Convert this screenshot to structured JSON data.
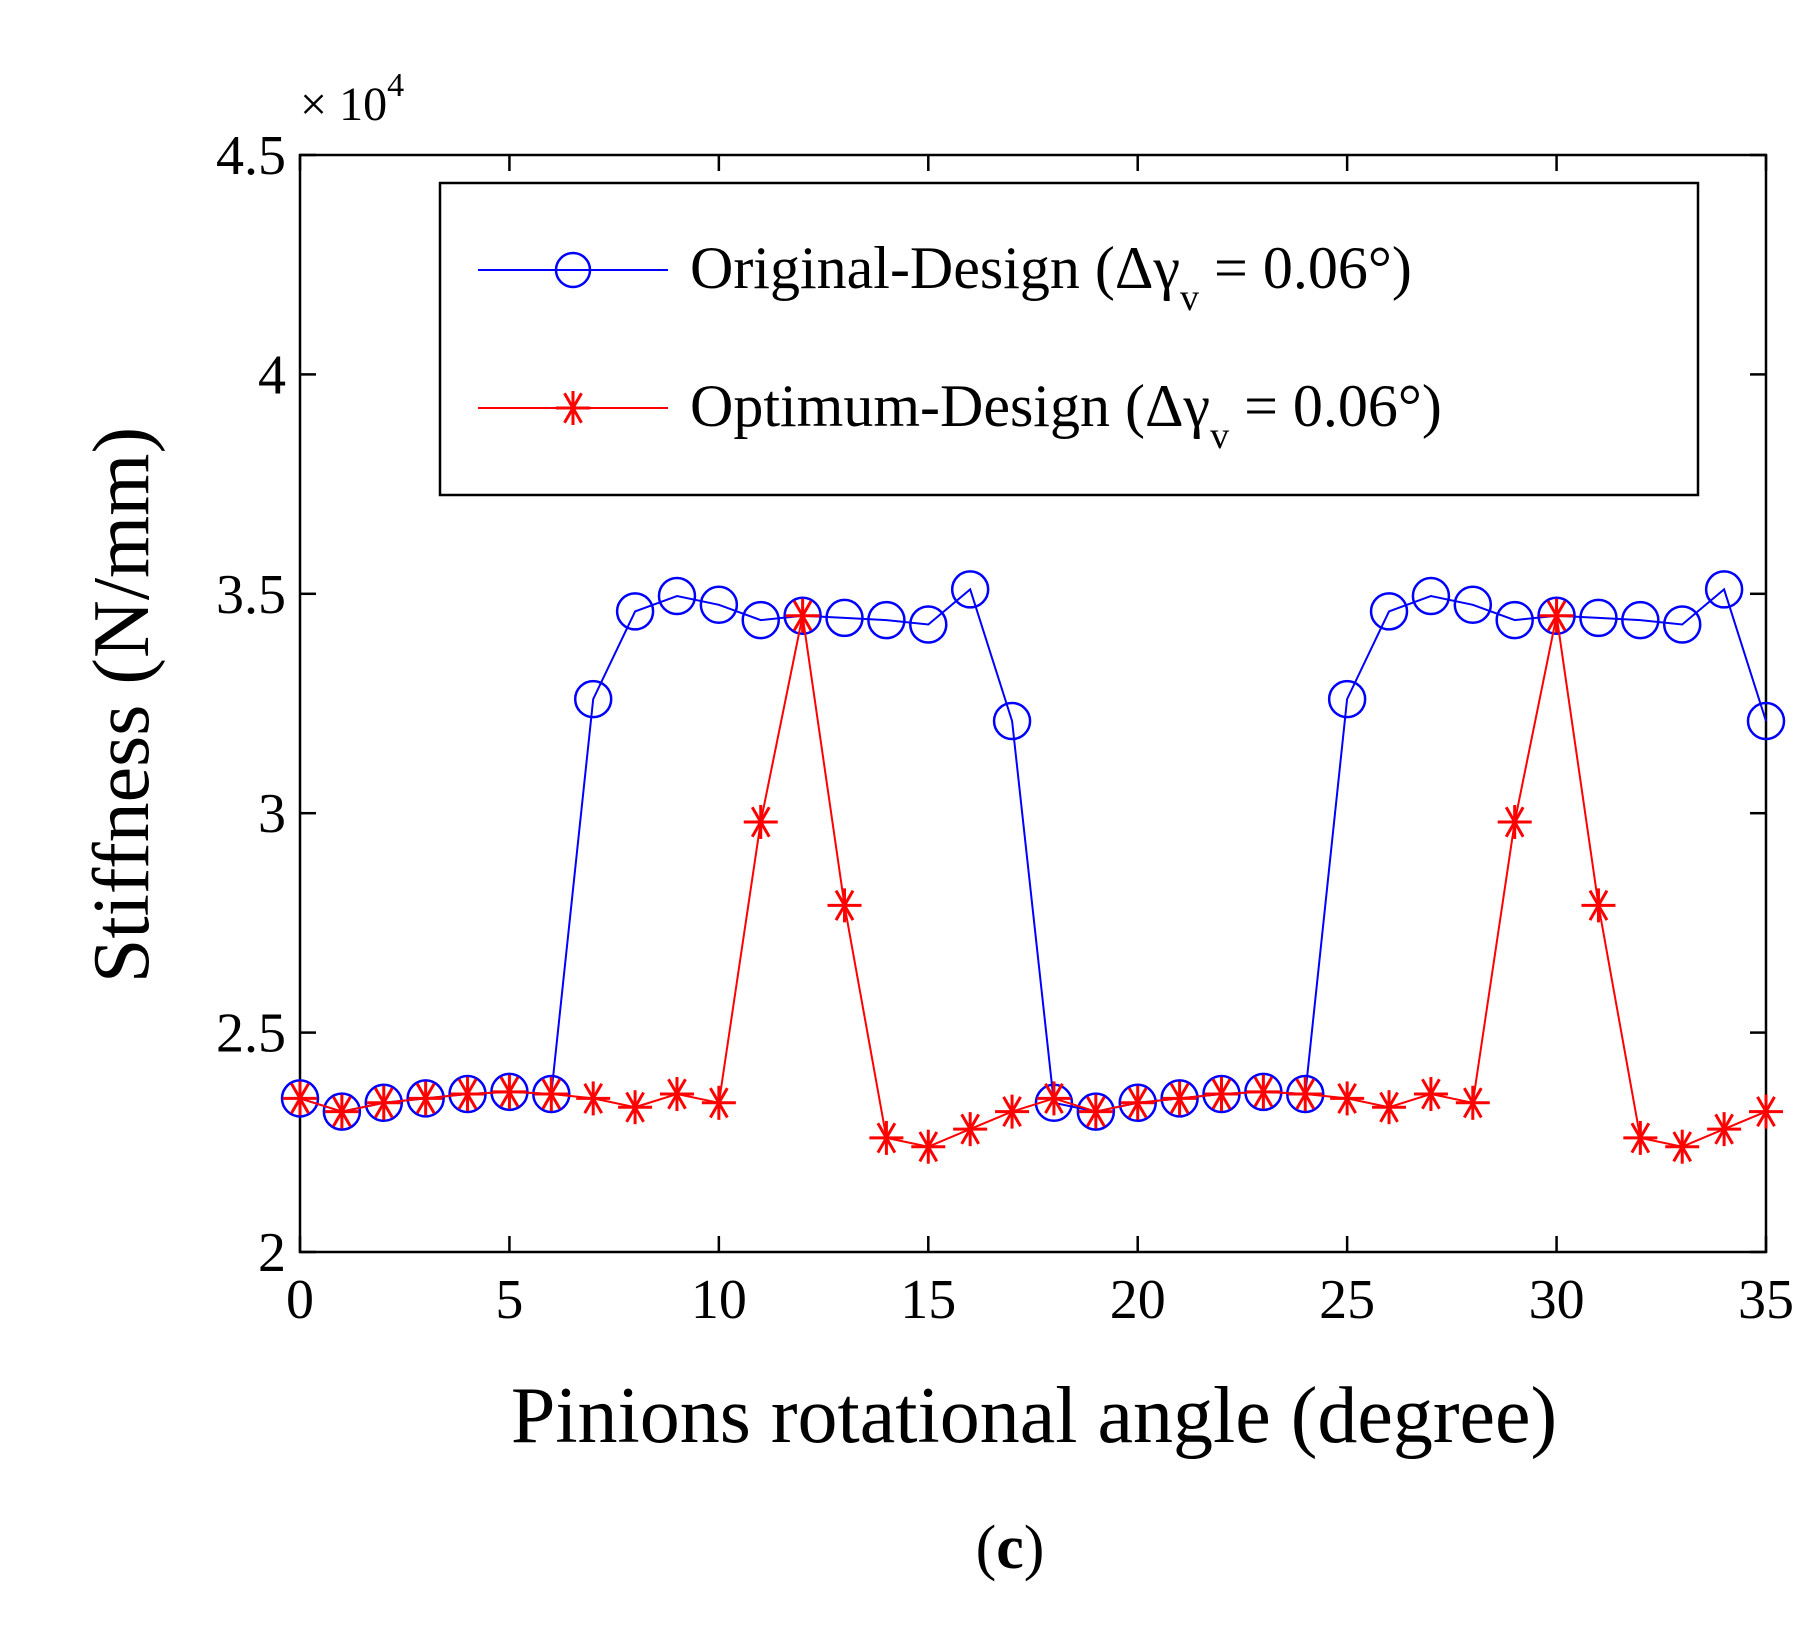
{
  "chart_data": {
    "type": "line",
    "xlabel": "Pinions rotational angle (degree)",
    "ylabel": "Stiffness (N/mm)",
    "xlim": [
      0,
      35
    ],
    "ylim": [
      2,
      4.5
    ],
    "x_ticks": [
      "0",
      "5",
      "10",
      "15",
      "20",
      "25",
      "30",
      "35"
    ],
    "y_ticks": [
      "2",
      "2.5",
      "3",
      "3.5",
      "4",
      "4.5"
    ],
    "y_multiplier": {
      "base": "× 10",
      "exponent": "4"
    },
    "grid": false,
    "legend_position": "top-right",
    "panel_label": {
      "open": "(",
      "letter": "c",
      "close": ")"
    },
    "x": [
      0,
      1,
      2,
      3,
      4,
      5,
      6,
      7,
      8,
      9,
      10,
      11,
      12,
      13,
      14,
      15,
      16,
      17,
      18,
      19,
      20,
      21,
      22,
      23,
      24,
      25,
      26,
      27,
      28,
      29,
      30,
      31,
      32,
      33,
      34,
      35
    ],
    "series": [
      {
        "name": "Original-Design",
        "legend": {
          "prefix": "Original-Design (Δγ",
          "subscript": "v",
          "suffix": " = 0.06°)"
        },
        "color": "#0000ff",
        "marker": "circle",
        "values": [
          2.35,
          2.32,
          2.34,
          2.35,
          2.36,
          2.365,
          2.36,
          3.26,
          3.46,
          3.495,
          3.475,
          3.44,
          3.45,
          3.445,
          3.44,
          3.43,
          3.51,
          3.21,
          2.34,
          2.32,
          2.34,
          2.35,
          2.36,
          2.365,
          2.36,
          3.26,
          3.46,
          3.495,
          3.475,
          3.44,
          3.45,
          3.445,
          3.44,
          3.43,
          3.51,
          3.21
        ]
      },
      {
        "name": "Optimum-Design",
        "legend": {
          "prefix": "Optimum-Design (Δγ",
          "subscript": "v",
          "suffix": " = 0.06°)"
        },
        "color": "#ff0000",
        "marker": "asterisk",
        "values": [
          2.35,
          2.32,
          2.34,
          2.35,
          2.36,
          2.365,
          2.36,
          2.35,
          2.33,
          2.36,
          2.34,
          2.98,
          3.45,
          2.79,
          2.26,
          2.24,
          2.28,
          2.32,
          2.35,
          2.32,
          2.34,
          2.35,
          2.36,
          2.365,
          2.36,
          2.35,
          2.33,
          2.36,
          2.34,
          2.98,
          3.45,
          2.79,
          2.26,
          2.24,
          2.28,
          2.32
        ]
      }
    ]
  }
}
